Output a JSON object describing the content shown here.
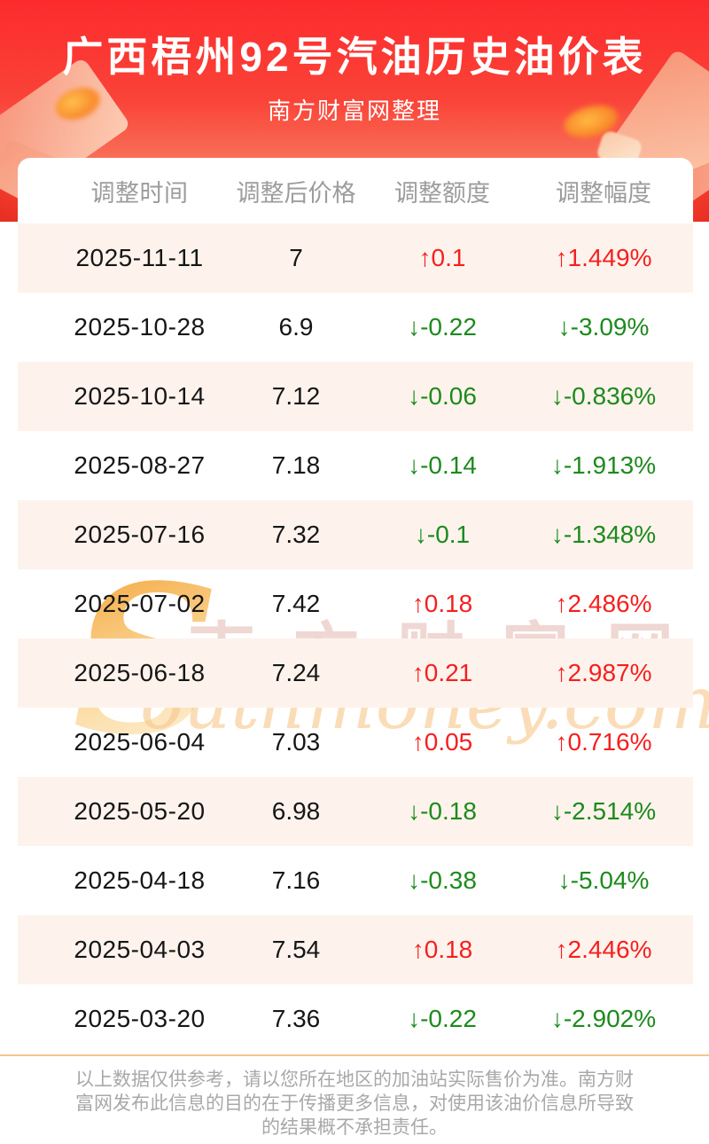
{
  "hero": {
    "title": "广西梧州92号汽油历史油价表",
    "subtitle": "南方财富网整理"
  },
  "table": {
    "columns": [
      "调整时间",
      "调整后价格",
      "调整额度",
      "调整幅度"
    ],
    "rows": [
      {
        "date": "2025-11-11",
        "price": "7",
        "change": "↑0.1",
        "pct": "↑1.449%",
        "dir": "up"
      },
      {
        "date": "2025-10-28",
        "price": "6.9",
        "change": "↓-0.22",
        "pct": "↓-3.09%",
        "dir": "down"
      },
      {
        "date": "2025-10-14",
        "price": "7.12",
        "change": "↓-0.06",
        "pct": "↓-0.836%",
        "dir": "down"
      },
      {
        "date": "2025-08-27",
        "price": "7.18",
        "change": "↓-0.14",
        "pct": "↓-1.913%",
        "dir": "down"
      },
      {
        "date": "2025-07-16",
        "price": "7.32",
        "change": "↓-0.1",
        "pct": "↓-1.348%",
        "dir": "down"
      },
      {
        "date": "2025-07-02",
        "price": "7.42",
        "change": "↑0.18",
        "pct": "↑2.486%",
        "dir": "up"
      },
      {
        "date": "2025-06-18",
        "price": "7.24",
        "change": "↑0.21",
        "pct": "↑2.987%",
        "dir": "up"
      },
      {
        "date": "2025-06-04",
        "price": "7.03",
        "change": "↑0.05",
        "pct": "↑0.716%",
        "dir": "up"
      },
      {
        "date": "2025-05-20",
        "price": "6.98",
        "change": "↓-0.18",
        "pct": "↓-2.514%",
        "dir": "down"
      },
      {
        "date": "2025-04-18",
        "price": "7.16",
        "change": "↓-0.38",
        "pct": "↓-5.04%",
        "dir": "down"
      },
      {
        "date": "2025-04-03",
        "price": "7.54",
        "change": "↑0.18",
        "pct": "↑2.446%",
        "dir": "up"
      },
      {
        "date": "2025-03-20",
        "price": "7.36",
        "change": "↓-0.22",
        "pct": "↓-2.902%",
        "dir": "down"
      }
    ]
  },
  "watermark": {
    "initial": "S",
    "cn": "南方财富网",
    "latin": "outhmoney.com"
  },
  "footer": {
    "lines": [
      "以上数据仅供参考，请以您所在地区的加油站实际售价为准。南方财",
      "富网发布此信息的目的在于传播更多信息，对使用该油价信息所导致",
      "的结果概不承担责任。"
    ]
  },
  "colors": {
    "hero_red_top": "#fc2b2d",
    "hero_red_bottom": "#f99d7f",
    "up_red": "#f61f1f",
    "down_green": "#1d8a1d",
    "row_stripe": "#fdf3ec",
    "divider_orange": "#f6c48c",
    "header_gray": "#9c9c9c",
    "footer_gray": "#a8a8a8"
  }
}
